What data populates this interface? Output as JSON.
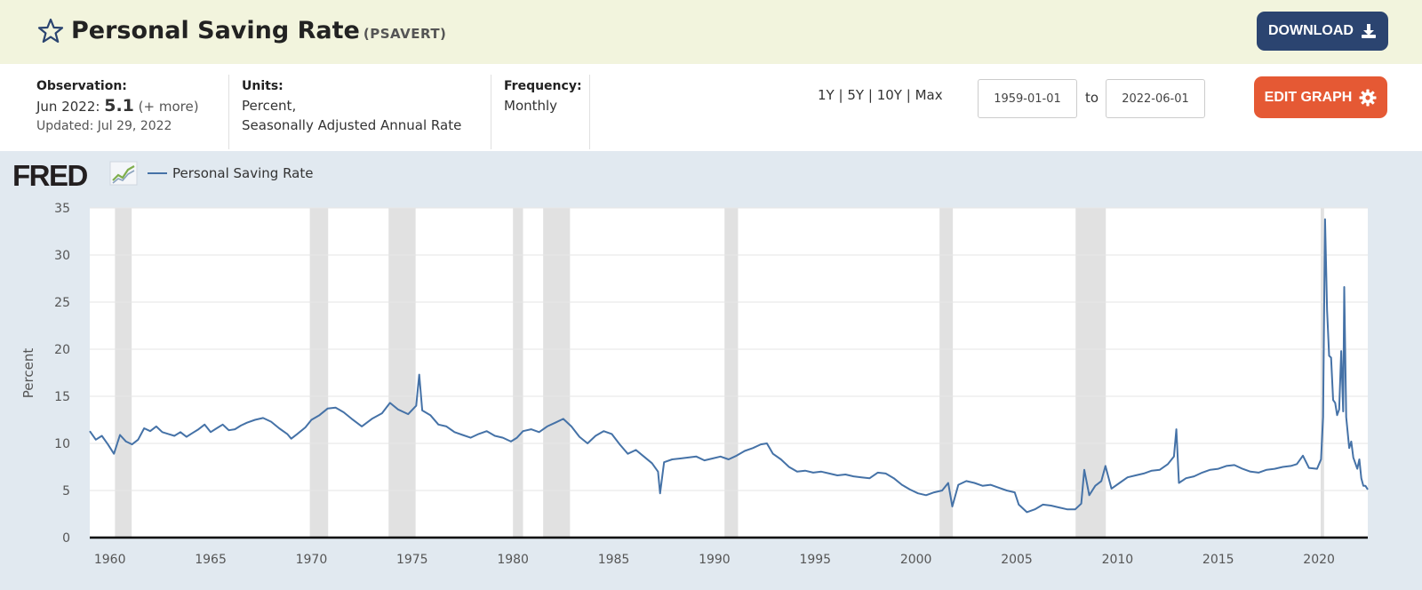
{
  "header": {
    "title": "Personal Saving Rate",
    "series_id": "(PSAVERT)",
    "download_label": "DOWNLOAD"
  },
  "info": {
    "observation_label": "Observation:",
    "observation_date": "Jun 2022:",
    "observation_value": "5.1",
    "observation_more": "(+ more)",
    "updated": "Updated: Jul 29, 2022",
    "units_label": "Units:",
    "units_line1": "Percent,",
    "units_line2": "Seasonally Adjusted Annual Rate",
    "frequency_label": "Frequency:",
    "frequency_value": "Monthly",
    "ranges": [
      "1Y",
      "5Y",
      "10Y",
      "Max"
    ],
    "range_sep": "|",
    "start_date": "1959-01-01",
    "to_label": "to",
    "end_date": "2022-06-01",
    "edit_graph_label": "EDIT GRAPH"
  },
  "colors": {
    "series": "#4572a7",
    "recession": "#e1e1e1",
    "header_bg": "#f2f4dd",
    "chart_bg": "#e1e9f0",
    "download_bg": "#2b4470",
    "edit_bg": "#e55934"
  },
  "icons": {
    "star": "star-outline-icon",
    "download": "download-icon",
    "edit": "gear-icon"
  },
  "chart_data": {
    "type": "line",
    "logo": "FRED",
    "legend": [
      "Personal Saving Rate"
    ],
    "ylabel": "Percent",
    "xlim": [
      1959.0,
      2022.42
    ],
    "ylim": [
      0,
      35
    ],
    "yticks": [
      0,
      5,
      10,
      15,
      20,
      25,
      30,
      35
    ],
    "xticks": [
      1960,
      1965,
      1970,
      1975,
      1980,
      1985,
      1990,
      1995,
      2000,
      2005,
      2010,
      2015,
      2020
    ],
    "grid": true,
    "recessions": [
      [
        1960.25,
        1961.08
      ],
      [
        1969.92,
        1970.83
      ],
      [
        1973.83,
        1975.17
      ],
      [
        1980.0,
        1980.5
      ],
      [
        1981.5,
        1982.83
      ],
      [
        1990.5,
        1991.17
      ],
      [
        2001.17,
        2001.83
      ],
      [
        2007.92,
        2009.42
      ],
      [
        2020.08,
        2020.25
      ]
    ],
    "series": [
      {
        "name": "Personal Saving Rate",
        "points": [
          [
            1959.0,
            11.3
          ],
          [
            1959.3,
            10.4
          ],
          [
            1959.6,
            10.8
          ],
          [
            1959.9,
            9.9
          ],
          [
            1960.2,
            8.9
          ],
          [
            1960.5,
            10.9
          ],
          [
            1960.8,
            10.2
          ],
          [
            1961.1,
            9.9
          ],
          [
            1961.4,
            10.4
          ],
          [
            1961.7,
            11.6
          ],
          [
            1962.0,
            11.3
          ],
          [
            1962.3,
            11.8
          ],
          [
            1962.6,
            11.2
          ],
          [
            1962.9,
            11.0
          ],
          [
            1963.2,
            10.8
          ],
          [
            1963.5,
            11.2
          ],
          [
            1963.8,
            10.7
          ],
          [
            1964.1,
            11.1
          ],
          [
            1964.4,
            11.5
          ],
          [
            1964.7,
            12.0
          ],
          [
            1965.0,
            11.2
          ],
          [
            1965.3,
            11.6
          ],
          [
            1965.6,
            12.0
          ],
          [
            1965.9,
            11.4
          ],
          [
            1966.2,
            11.5
          ],
          [
            1966.5,
            11.9
          ],
          [
            1966.8,
            12.2
          ],
          [
            1967.2,
            12.5
          ],
          [
            1967.6,
            12.7
          ],
          [
            1968.0,
            12.3
          ],
          [
            1968.4,
            11.6
          ],
          [
            1968.8,
            11.0
          ],
          [
            1969.0,
            10.5
          ],
          [
            1969.3,
            11.0
          ],
          [
            1969.7,
            11.7
          ],
          [
            1970.0,
            12.5
          ],
          [
            1970.4,
            13.0
          ],
          [
            1970.8,
            13.7
          ],
          [
            1971.2,
            13.8
          ],
          [
            1971.6,
            13.3
          ],
          [
            1972.0,
            12.6
          ],
          [
            1972.5,
            11.8
          ],
          [
            1973.0,
            12.6
          ],
          [
            1973.5,
            13.2
          ],
          [
            1973.9,
            14.3
          ],
          [
            1974.3,
            13.6
          ],
          [
            1974.8,
            13.1
          ],
          [
            1975.2,
            14.0
          ],
          [
            1975.35,
            17.3
          ],
          [
            1975.5,
            13.5
          ],
          [
            1975.9,
            13.0
          ],
          [
            1976.3,
            12.0
          ],
          [
            1976.7,
            11.8
          ],
          [
            1977.1,
            11.2
          ],
          [
            1977.5,
            10.9
          ],
          [
            1977.9,
            10.6
          ],
          [
            1978.3,
            11.0
          ],
          [
            1978.7,
            11.3
          ],
          [
            1979.1,
            10.8
          ],
          [
            1979.5,
            10.6
          ],
          [
            1979.9,
            10.2
          ],
          [
            1980.2,
            10.6
          ],
          [
            1980.5,
            11.3
          ],
          [
            1980.9,
            11.5
          ],
          [
            1981.3,
            11.2
          ],
          [
            1981.7,
            11.8
          ],
          [
            1982.1,
            12.2
          ],
          [
            1982.5,
            12.6
          ],
          [
            1982.9,
            11.8
          ],
          [
            1983.3,
            10.7
          ],
          [
            1983.7,
            10.0
          ],
          [
            1984.1,
            10.8
          ],
          [
            1984.5,
            11.3
          ],
          [
            1984.9,
            11.0
          ],
          [
            1985.3,
            9.9
          ],
          [
            1985.7,
            8.9
          ],
          [
            1986.1,
            9.3
          ],
          [
            1986.5,
            8.6
          ],
          [
            1986.9,
            7.9
          ],
          [
            1987.2,
            7.0
          ],
          [
            1987.3,
            4.7
          ],
          [
            1987.5,
            8.0
          ],
          [
            1987.9,
            8.3
          ],
          [
            1988.3,
            8.4
          ],
          [
            1988.7,
            8.5
          ],
          [
            1989.1,
            8.6
          ],
          [
            1989.5,
            8.2
          ],
          [
            1989.9,
            8.4
          ],
          [
            1990.3,
            8.6
          ],
          [
            1990.7,
            8.3
          ],
          [
            1991.1,
            8.7
          ],
          [
            1991.5,
            9.2
          ],
          [
            1991.9,
            9.5
          ],
          [
            1992.3,
            9.9
          ],
          [
            1992.6,
            10.0
          ],
          [
            1992.9,
            8.9
          ],
          [
            1993.3,
            8.3
          ],
          [
            1993.7,
            7.5
          ],
          [
            1994.1,
            7.0
          ],
          [
            1994.5,
            7.1
          ],
          [
            1994.9,
            6.9
          ],
          [
            1995.3,
            7.0
          ],
          [
            1995.7,
            6.8
          ],
          [
            1996.1,
            6.6
          ],
          [
            1996.5,
            6.7
          ],
          [
            1996.9,
            6.5
          ],
          [
            1997.3,
            6.4
          ],
          [
            1997.7,
            6.3
          ],
          [
            1998.1,
            6.9
          ],
          [
            1998.5,
            6.8
          ],
          [
            1998.9,
            6.3
          ],
          [
            1999.3,
            5.6
          ],
          [
            1999.7,
            5.1
          ],
          [
            2000.1,
            4.7
          ],
          [
            2000.5,
            4.5
          ],
          [
            2000.9,
            4.8
          ],
          [
            2001.3,
            5.0
          ],
          [
            2001.6,
            5.8
          ],
          [
            2001.8,
            3.3
          ],
          [
            2002.1,
            5.6
          ],
          [
            2002.5,
            6.0
          ],
          [
            2002.9,
            5.8
          ],
          [
            2003.3,
            5.5
          ],
          [
            2003.7,
            5.6
          ],
          [
            2004.1,
            5.3
          ],
          [
            2004.5,
            5.0
          ],
          [
            2004.9,
            4.8
          ],
          [
            2005.1,
            3.5
          ],
          [
            2005.5,
            2.7
          ],
          [
            2005.9,
            3.0
          ],
          [
            2006.3,
            3.5
          ],
          [
            2006.7,
            3.4
          ],
          [
            2007.1,
            3.2
          ],
          [
            2007.5,
            3.0
          ],
          [
            2007.9,
            3.0
          ],
          [
            2008.2,
            3.6
          ],
          [
            2008.35,
            7.2
          ],
          [
            2008.6,
            4.5
          ],
          [
            2008.9,
            5.5
          ],
          [
            2009.2,
            6.0
          ],
          [
            2009.4,
            7.6
          ],
          [
            2009.7,
            5.2
          ],
          [
            2010.1,
            5.8
          ],
          [
            2010.5,
            6.4
          ],
          [
            2010.9,
            6.6
          ],
          [
            2011.3,
            6.8
          ],
          [
            2011.7,
            7.1
          ],
          [
            2012.1,
            7.2
          ],
          [
            2012.5,
            7.8
          ],
          [
            2012.8,
            8.6
          ],
          [
            2012.92,
            11.5
          ],
          [
            2013.05,
            5.8
          ],
          [
            2013.4,
            6.3
          ],
          [
            2013.8,
            6.5
          ],
          [
            2014.2,
            6.9
          ],
          [
            2014.6,
            7.2
          ],
          [
            2015.0,
            7.3
          ],
          [
            2015.4,
            7.6
          ],
          [
            2015.8,
            7.7
          ],
          [
            2016.2,
            7.3
          ],
          [
            2016.6,
            7.0
          ],
          [
            2017.0,
            6.9
          ],
          [
            2017.4,
            7.2
          ],
          [
            2017.8,
            7.3
          ],
          [
            2018.2,
            7.5
          ],
          [
            2018.6,
            7.6
          ],
          [
            2018.9,
            7.8
          ],
          [
            2019.2,
            8.7
          ],
          [
            2019.5,
            7.4
          ],
          [
            2019.9,
            7.3
          ],
          [
            2020.1,
            8.3
          ],
          [
            2020.2,
            12.8
          ],
          [
            2020.3,
            33.8
          ],
          [
            2020.4,
            24.1
          ],
          [
            2020.5,
            19.3
          ],
          [
            2020.6,
            19.1
          ],
          [
            2020.7,
            14.6
          ],
          [
            2020.8,
            14.3
          ],
          [
            2020.9,
            13.0
          ],
          [
            2021.0,
            13.6
          ],
          [
            2021.1,
            19.8
          ],
          [
            2021.2,
            13.4
          ],
          [
            2021.25,
            26.6
          ],
          [
            2021.35,
            12.8
          ],
          [
            2021.5,
            9.5
          ],
          [
            2021.6,
            10.2
          ],
          [
            2021.7,
            8.5
          ],
          [
            2021.9,
            7.3
          ],
          [
            2022.0,
            8.3
          ],
          [
            2022.1,
            6.3
          ],
          [
            2022.2,
            5.5
          ],
          [
            2022.3,
            5.5
          ],
          [
            2022.42,
            5.1
          ]
        ]
      }
    ]
  }
}
